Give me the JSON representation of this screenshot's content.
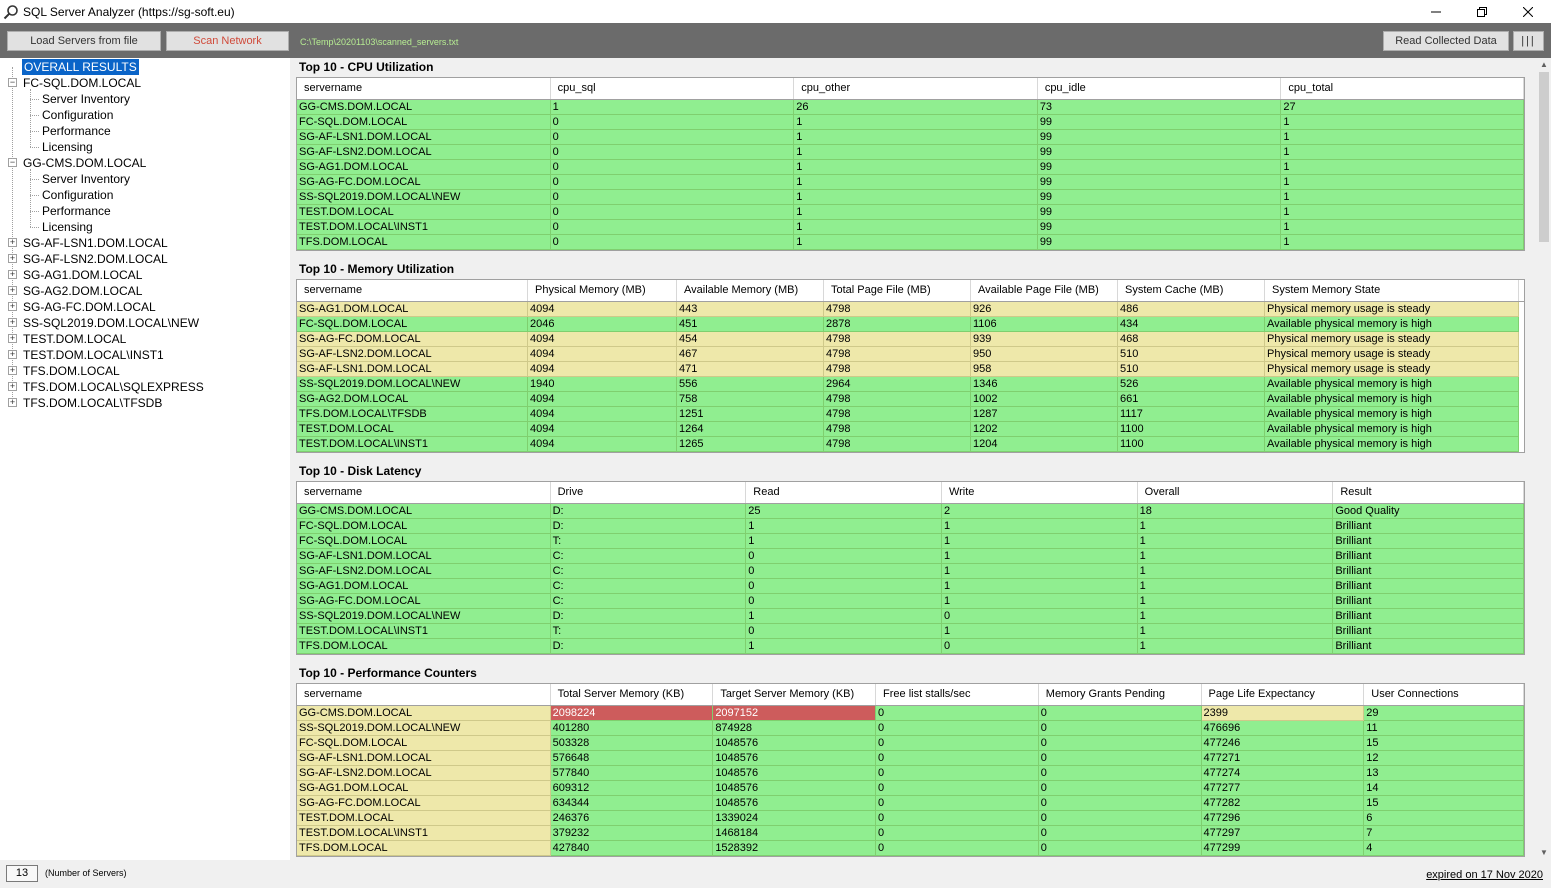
{
  "window": {
    "title": "SQL Server Analyzer (https://sg-soft.eu)",
    "app_icon": "magnifier-icon",
    "minimize_icon": "minimize-icon",
    "maximize_icon": "restore-icon",
    "close_icon": "close-icon"
  },
  "toolbar": {
    "load_label": "Load Servers from file",
    "scan_label": "Scan Network",
    "path": "C:\\Temp\\20201103\\scanned_servers.txt",
    "read_label": "Read Collected Data",
    "bars_label": "|||"
  },
  "tree": {
    "root": "OVERALL RESULTS",
    "expanded": [
      {
        "name": "FC-SQL.DOM.LOCAL",
        "children": [
          "Server Inventory",
          "Configuration",
          "Performance",
          "Licensing"
        ]
      },
      {
        "name": "GG-CMS.DOM.LOCAL",
        "children": [
          "Server Inventory",
          "Configuration",
          "Performance",
          "Licensing"
        ]
      }
    ],
    "collapsed": [
      "SG-AF-LSN1.DOM.LOCAL",
      "SG-AF-LSN2.DOM.LOCAL",
      "SG-AG1.DOM.LOCAL",
      "SG-AG2.DOM.LOCAL",
      "SG-AG-FC.DOM.LOCAL",
      "SS-SQL2019.DOM.LOCAL\\NEW",
      "TEST.DOM.LOCAL",
      "TEST.DOM.LOCAL\\INST1",
      "TFS.DOM.LOCAL",
      "TFS.DOM.LOCAL\\SQLEXPRESS",
      "TFS.DOM.LOCAL\\TFSDB"
    ]
  },
  "sections": [
    {
      "title": "Top 10 - CPU Utilization",
      "columns": [
        "servername",
        "cpu_sql",
        "cpu_other",
        "cpu_idle",
        "cpu_total"
      ],
      "rows": [
        [
          "GG-CMS.DOM.LOCAL",
          "1",
          "26",
          "73",
          "27"
        ],
        [
          "FC-SQL.DOM.LOCAL",
          "0",
          "1",
          "99",
          "1"
        ],
        [
          "SG-AF-LSN1.DOM.LOCAL",
          "0",
          "1",
          "99",
          "1"
        ],
        [
          "SG-AF-LSN2.DOM.LOCAL",
          "0",
          "1",
          "99",
          "1"
        ],
        [
          "SG-AG1.DOM.LOCAL",
          "0",
          "1",
          "99",
          "1"
        ],
        [
          "SG-AG-FC.DOM.LOCAL",
          "0",
          "1",
          "99",
          "1"
        ],
        [
          "SS-SQL2019.DOM.LOCAL\\NEW",
          "0",
          "1",
          "99",
          "1"
        ],
        [
          "TEST.DOM.LOCAL",
          "0",
          "1",
          "99",
          "1"
        ],
        [
          "TEST.DOM.LOCAL\\INST1",
          "0",
          "1",
          "99",
          "1"
        ],
        [
          "TFS.DOM.LOCAL",
          "0",
          "1",
          "99",
          "1"
        ]
      ],
      "colors": [
        [
          "g",
          "g",
          "g",
          "g",
          "g"
        ],
        [
          "g",
          "g",
          "g",
          "g",
          "g"
        ],
        [
          "g",
          "g",
          "g",
          "g",
          "g"
        ],
        [
          "g",
          "g",
          "g",
          "g",
          "g"
        ],
        [
          "g",
          "g",
          "g",
          "g",
          "g"
        ],
        [
          "g",
          "g",
          "g",
          "g",
          "g"
        ],
        [
          "g",
          "g",
          "g",
          "g",
          "g"
        ],
        [
          "g",
          "g",
          "g",
          "g",
          "g"
        ],
        [
          "g",
          "g",
          "g",
          "g",
          "g"
        ],
        [
          "g",
          "g",
          "g",
          "g",
          "g"
        ]
      ]
    },
    {
      "title": "Top 10 - Memory Utilization",
      "columns": [
        "servername",
        "Physical Memory (MB)",
        "Available Memory (MB)",
        "Total Page File (MB)",
        "Available Page File (MB)",
        "System Cache (MB)",
        "System Memory State"
      ],
      "rows": [
        [
          "SG-AG1.DOM.LOCAL",
          "4094",
          "443",
          "4798",
          "926",
          "486",
          "Physical memory usage is steady"
        ],
        [
          "FC-SQL.DOM.LOCAL",
          "2046",
          "451",
          "2878",
          "1106",
          "434",
          "Available physical memory is high"
        ],
        [
          "SG-AG-FC.DOM.LOCAL",
          "4094",
          "454",
          "4798",
          "939",
          "468",
          "Physical memory usage is steady"
        ],
        [
          "SG-AF-LSN2.DOM.LOCAL",
          "4094",
          "467",
          "4798",
          "950",
          "510",
          "Physical memory usage is steady"
        ],
        [
          "SG-AF-LSN1.DOM.LOCAL",
          "4094",
          "471",
          "4798",
          "958",
          "510",
          "Physical memory usage is steady"
        ],
        [
          "SS-SQL2019.DOM.LOCAL\\NEW",
          "1940",
          "556",
          "2964",
          "1346",
          "526",
          "Available physical memory is high"
        ],
        [
          "SG-AG2.DOM.LOCAL",
          "4094",
          "758",
          "4798",
          "1002",
          "661",
          "Available physical memory is high"
        ],
        [
          "TFS.DOM.LOCAL\\TFSDB",
          "4094",
          "1251",
          "4798",
          "1287",
          "1117",
          "Available physical memory is high"
        ],
        [
          "TEST.DOM.LOCAL",
          "4094",
          "1264",
          "4798",
          "1202",
          "1100",
          "Available physical memory is high"
        ],
        [
          "TEST.DOM.LOCAL\\INST1",
          "4094",
          "1265",
          "4798",
          "1204",
          "1100",
          "Available physical memory is high"
        ]
      ],
      "colors": [
        [
          "y",
          "y",
          "y",
          "y",
          "y",
          "y",
          "y"
        ],
        [
          "g",
          "g",
          "g",
          "g",
          "g",
          "g",
          "g"
        ],
        [
          "y",
          "y",
          "y",
          "y",
          "y",
          "y",
          "y"
        ],
        [
          "y",
          "y",
          "y",
          "y",
          "y",
          "y",
          "y"
        ],
        [
          "y",
          "y",
          "y",
          "y",
          "y",
          "y",
          "y"
        ],
        [
          "g",
          "g",
          "g",
          "g",
          "g",
          "g",
          "g"
        ],
        [
          "g",
          "g",
          "g",
          "g",
          "g",
          "g",
          "g"
        ],
        [
          "g",
          "g",
          "g",
          "g",
          "g",
          "g",
          "g"
        ],
        [
          "g",
          "g",
          "g",
          "g",
          "g",
          "g",
          "g"
        ],
        [
          "g",
          "g",
          "g",
          "g",
          "g",
          "g",
          "g"
        ]
      ]
    },
    {
      "title": "Top 10 - Disk Latency",
      "columns": [
        "servername",
        "Drive",
        "Read",
        "Write",
        "Overall",
        "Result"
      ],
      "rows": [
        [
          "GG-CMS.DOM.LOCAL",
          "D:",
          "25",
          "2",
          "18",
          "Good Quality"
        ],
        [
          "FC-SQL.DOM.LOCAL",
          "D:",
          "1",
          "1",
          "1",
          "Brilliant"
        ],
        [
          "FC-SQL.DOM.LOCAL",
          "T:",
          "1",
          "1",
          "1",
          "Brilliant"
        ],
        [
          "SG-AF-LSN1.DOM.LOCAL",
          "C:",
          "0",
          "1",
          "1",
          "Brilliant"
        ],
        [
          "SG-AF-LSN2.DOM.LOCAL",
          "C:",
          "0",
          "1",
          "1",
          "Brilliant"
        ],
        [
          "SG-AG1.DOM.LOCAL",
          "C:",
          "0",
          "1",
          "1",
          "Brilliant"
        ],
        [
          "SG-AG-FC.DOM.LOCAL",
          "C:",
          "0",
          "1",
          "1",
          "Brilliant"
        ],
        [
          "SS-SQL2019.DOM.LOCAL\\NEW",
          "D:",
          "1",
          "0",
          "1",
          "Brilliant"
        ],
        [
          "TEST.DOM.LOCAL\\INST1",
          "T:",
          "0",
          "1",
          "1",
          "Brilliant"
        ],
        [
          "TFS.DOM.LOCAL",
          "D:",
          "1",
          "0",
          "1",
          "Brilliant"
        ]
      ],
      "colors": [
        [
          "g",
          "g",
          "g",
          "g",
          "g",
          "g"
        ],
        [
          "g",
          "g",
          "g",
          "g",
          "g",
          "g"
        ],
        [
          "g",
          "g",
          "g",
          "g",
          "g",
          "g"
        ],
        [
          "g",
          "g",
          "g",
          "g",
          "g",
          "g"
        ],
        [
          "g",
          "g",
          "g",
          "g",
          "g",
          "g"
        ],
        [
          "g",
          "g",
          "g",
          "g",
          "g",
          "g"
        ],
        [
          "g",
          "g",
          "g",
          "g",
          "g",
          "g"
        ],
        [
          "g",
          "g",
          "g",
          "g",
          "g",
          "g"
        ],
        [
          "g",
          "g",
          "g",
          "g",
          "g",
          "g"
        ],
        [
          "g",
          "g",
          "g",
          "g",
          "g",
          "g"
        ]
      ]
    },
    {
      "title": "Top 10 - Performance Counters",
      "columns": [
        "servername",
        "Total Server Memory (KB)",
        "Target Server Memory (KB)",
        "Free list stalls/sec",
        "Memory Grants Pending",
        "Page Life Expectancy",
        "User Connections"
      ],
      "rows": [
        [
          "GG-CMS.DOM.LOCAL",
          "2098224",
          "2097152",
          "0",
          "0",
          "2399",
          "29"
        ],
        [
          "SS-SQL2019.DOM.LOCAL\\NEW",
          "401280",
          "874928",
          "0",
          "0",
          "476696",
          "11"
        ],
        [
          "FC-SQL.DOM.LOCAL",
          "503328",
          "1048576",
          "0",
          "0",
          "477246",
          "15"
        ],
        [
          "SG-AF-LSN1.DOM.LOCAL",
          "576648",
          "1048576",
          "0",
          "0",
          "477271",
          "12"
        ],
        [
          "SG-AF-LSN2.DOM.LOCAL",
          "577840",
          "1048576",
          "0",
          "0",
          "477274",
          "13"
        ],
        [
          "SG-AG1.DOM.LOCAL",
          "609312",
          "1048576",
          "0",
          "0",
          "477277",
          "14"
        ],
        [
          "SG-AG-FC.DOM.LOCAL",
          "634344",
          "1048576",
          "0",
          "0",
          "477282",
          "15"
        ],
        [
          "TEST.DOM.LOCAL",
          "246376",
          "1339024",
          "0",
          "0",
          "477296",
          "6"
        ],
        [
          "TEST.DOM.LOCAL\\INST1",
          "379232",
          "1468184",
          "0",
          "0",
          "477297",
          "7"
        ],
        [
          "TFS.DOM.LOCAL",
          "427840",
          "1528392",
          "0",
          "0",
          "477299",
          "4"
        ]
      ],
      "colors": [
        [
          "y",
          "r",
          "r",
          "g",
          "g",
          "y",
          "g"
        ],
        [
          "y",
          "g",
          "g",
          "g",
          "g",
          "g",
          "g"
        ],
        [
          "y",
          "g",
          "g",
          "g",
          "g",
          "g",
          "g"
        ],
        [
          "y",
          "g",
          "g",
          "g",
          "g",
          "g",
          "g"
        ],
        [
          "y",
          "g",
          "g",
          "g",
          "g",
          "g",
          "g"
        ],
        [
          "y",
          "g",
          "g",
          "g",
          "g",
          "g",
          "g"
        ],
        [
          "y",
          "g",
          "g",
          "g",
          "g",
          "g",
          "g"
        ],
        [
          "y",
          "g",
          "g",
          "g",
          "g",
          "g",
          "g"
        ],
        [
          "y",
          "g",
          "g",
          "g",
          "g",
          "g",
          "g"
        ],
        [
          "y",
          "g",
          "g",
          "g",
          "g",
          "g",
          "g"
        ]
      ]
    }
  ],
  "status": {
    "count": "13",
    "count_label": "(Number of Servers)",
    "expiry": "expired on 17 Nov 2020"
  },
  "colors": {
    "good": "#90ee90",
    "warn": "#eee8aa",
    "bad": "#cd5c5c",
    "selection": "#0a64c8",
    "toolbar": "#6b6b6b",
    "path_text": "#b6ec92"
  }
}
